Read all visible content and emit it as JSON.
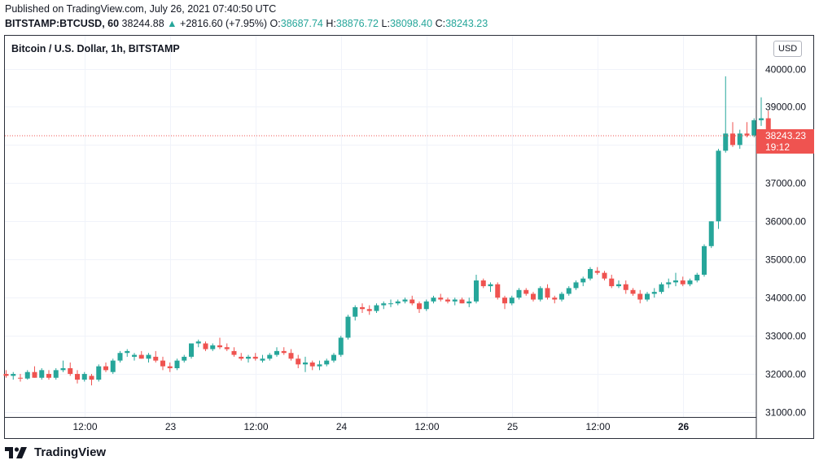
{
  "header": {
    "published": "Published on TradingView.com, July 26, 2021 07:40:50 UTC",
    "symbol": "BITSTAMP:BTCUSD, 60",
    "last": "38244.88",
    "arrow": "▲",
    "change": "+2816.60 (+7.95%)",
    "o_label": "O:",
    "o_value": "38687.74",
    "h_label": "H:",
    "h_value": "38876.72",
    "l_label": "L:",
    "l_value": "38098.40",
    "c_label": "C:",
    "c_value": "38243.23"
  },
  "legend": "Bitcoin / U.S. Dollar, 1h, BITSTAMP",
  "currency_button": "USD",
  "footer": {
    "brand": "TradingView"
  },
  "colors": {
    "up": "#26a69a",
    "down": "#ef5350",
    "grid": "#f0f3fa",
    "text": "#131722"
  },
  "chart_data": {
    "type": "candlestick",
    "title": "Bitcoin / U.S. Dollar, 1h, BITSTAMP",
    "interval": "1h",
    "ylim": [
      30800,
      40600
    ],
    "y_ticks": [
      "31000.00",
      "32000.00",
      "33000.00",
      "34000.00",
      "35000.00",
      "36000.00",
      "37000.00",
      "38000.00",
      "39000.00",
      "40000.00"
    ],
    "y_tick_values": [
      31000,
      32000,
      33000,
      34000,
      35000,
      36000,
      37000,
      38000,
      39000,
      40000
    ],
    "x_ticks": [
      {
        "label": "12:00",
        "index": 12,
        "bold": false
      },
      {
        "label": "23",
        "index": 24,
        "bold": false
      },
      {
        "label": "12:00",
        "index": 36,
        "bold": false
      },
      {
        "label": "24",
        "index": 48,
        "bold": false
      },
      {
        "label": "12:00",
        "index": 60,
        "bold": false
      },
      {
        "label": "25",
        "index": 72,
        "bold": false
      },
      {
        "label": "12:00",
        "index": 84,
        "bold": false
      },
      {
        "label": "26",
        "index": 96,
        "bold": true
      }
    ],
    "first_index": 1,
    "last_price": 38243.23,
    "last_price_label": "38243.23",
    "countdown": "19:12",
    "candles": [
      [
        32000,
        32100,
        31900,
        31950
      ],
      [
        31950,
        32050,
        31850,
        32000
      ],
      [
        31900,
        32000,
        31800,
        31880
      ],
      [
        31880,
        32100,
        31850,
        32050
      ],
      [
        32050,
        32200,
        31900,
        31900
      ],
      [
        31900,
        32150,
        31850,
        32100
      ],
      [
        32000,
        32100,
        31850,
        31900
      ],
      [
        31900,
        32150,
        31850,
        32100
      ],
      [
        32100,
        32350,
        32050,
        32150
      ],
      [
        32150,
        32300,
        31950,
        32000
      ],
      [
        32000,
        32100,
        31750,
        31850
      ],
      [
        31850,
        32050,
        31800,
        32000
      ],
      [
        31950,
        32000,
        31700,
        31850
      ],
      [
        31850,
        32250,
        31800,
        32200
      ],
      [
        32200,
        32300,
        32050,
        32100
      ],
      [
        32050,
        32400,
        32000,
        32350
      ],
      [
        32350,
        32600,
        32300,
        32550
      ],
      [
        32550,
        32650,
        32450,
        32600
      ],
      [
        32450,
        32550,
        32350,
        32500
      ],
      [
        32500,
        32600,
        32400,
        32400
      ],
      [
        32400,
        32550,
        32300,
        32500
      ],
      [
        32450,
        32600,
        32300,
        32350
      ],
      [
        32350,
        32450,
        32100,
        32200
      ],
      [
        32200,
        32300,
        32050,
        32150
      ],
      [
        32150,
        32400,
        32100,
        32350
      ],
      [
        32350,
        32500,
        32300,
        32450
      ],
      [
        32450,
        32800,
        32400,
        32800
      ],
      [
        32800,
        32900,
        32700,
        32850
      ],
      [
        32800,
        32850,
        32600,
        32650
      ],
      [
        32650,
        32800,
        32600,
        32750
      ],
      [
        32750,
        32950,
        32650,
        32700
      ],
      [
        32700,
        32800,
        32600,
        32650
      ],
      [
        32600,
        32700,
        32450,
        32500
      ],
      [
        32450,
        32550,
        32350,
        32400
      ],
      [
        32400,
        32500,
        32300,
        32450
      ],
      [
        32450,
        32550,
        32350,
        32400
      ],
      [
        32350,
        32500,
        32300,
        32400
      ],
      [
        32400,
        32550,
        32350,
        32500
      ],
      [
        32500,
        32700,
        32450,
        32600
      ],
      [
        32600,
        32700,
        32500,
        32550
      ],
      [
        32550,
        32650,
        32350,
        32400
      ],
      [
        32400,
        32500,
        32150,
        32250
      ],
      [
        32250,
        32450,
        32050,
        32300
      ],
      [
        32300,
        32350,
        32100,
        32200
      ],
      [
        32200,
        32350,
        32100,
        32250
      ],
      [
        32250,
        32400,
        32200,
        32350
      ],
      [
        32350,
        32550,
        32300,
        32500
      ],
      [
        32500,
        33000,
        32450,
        32950
      ],
      [
        32950,
        33550,
        32900,
        33500
      ],
      [
        33500,
        33800,
        33400,
        33750
      ],
      [
        33750,
        33850,
        33600,
        33700
      ],
      [
        33700,
        33800,
        33550,
        33650
      ],
      [
        33650,
        33850,
        33600,
        33800
      ],
      [
        33800,
        33900,
        33700,
        33850
      ],
      [
        33850,
        33950,
        33750,
        33850
      ],
      [
        33850,
        33950,
        33800,
        33900
      ],
      [
        33900,
        34000,
        33850,
        33950
      ],
      [
        33950,
        34050,
        33800,
        33850
      ],
      [
        33850,
        33900,
        33600,
        33700
      ],
      [
        33700,
        33950,
        33650,
        33900
      ],
      [
        33900,
        34050,
        33850,
        34000
      ],
      [
        34000,
        34100,
        33900,
        33950
      ],
      [
        33950,
        34000,
        33850,
        33900
      ],
      [
        33900,
        34000,
        33800,
        33950
      ],
      [
        33950,
        34000,
        33850,
        33850
      ],
      [
        33850,
        34000,
        33750,
        33900
      ],
      [
        33900,
        34600,
        33850,
        34450
      ],
      [
        34450,
        34500,
        34250,
        34300
      ],
      [
        34300,
        34400,
        34150,
        34350
      ],
      [
        34350,
        34400,
        33950,
        34000
      ],
      [
        34000,
        34050,
        33700,
        33850
      ],
      [
        33850,
        34050,
        33800,
        34000
      ],
      [
        34000,
        34250,
        33950,
        34200
      ],
      [
        34200,
        34250,
        34050,
        34100
      ],
      [
        34100,
        34150,
        33900,
        33950
      ],
      [
        33950,
        34300,
        33900,
        34250
      ],
      [
        34250,
        34350,
        33950,
        34000
      ],
      [
        34000,
        34050,
        33850,
        33950
      ],
      [
        33950,
        34150,
        33900,
        34100
      ],
      [
        34100,
        34300,
        34050,
        34250
      ],
      [
        34250,
        34450,
        34200,
        34400
      ],
      [
        34400,
        34550,
        34300,
        34500
      ],
      [
        34500,
        34800,
        34450,
        34750
      ],
      [
        34700,
        34800,
        34600,
        34650
      ],
      [
        34650,
        34700,
        34450,
        34500
      ],
      [
        34500,
        34600,
        34250,
        34300
      ],
      [
        34300,
        34450,
        34250,
        34350
      ],
      [
        34350,
        34450,
        34100,
        34200
      ],
      [
        34200,
        34250,
        34050,
        34100
      ],
      [
        34100,
        34200,
        33850,
        33950
      ],
      [
        33950,
        34150,
        33900,
        34100
      ],
      [
        34100,
        34250,
        34000,
        34150
      ],
      [
        34150,
        34400,
        34100,
        34350
      ],
      [
        34350,
        34500,
        34250,
        34400
      ],
      [
        34400,
        34650,
        34300,
        34450
      ],
      [
        34450,
        34550,
        34300,
        34350
      ],
      [
        34350,
        34500,
        34300,
        34450
      ],
      [
        34450,
        34650,
        34400,
        34600
      ],
      [
        34600,
        35400,
        34550,
        35350
      ],
      [
        35350,
        36000,
        35300,
        36000
      ],
      [
        36000,
        37900,
        35800,
        37850
      ],
      [
        37850,
        39800,
        37800,
        38300
      ],
      [
        38300,
        38600,
        37950,
        38000
      ],
      [
        38000,
        38400,
        37900,
        38300
      ],
      [
        38300,
        38600,
        38200,
        38250
      ],
      [
        38250,
        38700,
        38200,
        38650
      ],
      [
        38650,
        39250,
        38500,
        38700
      ],
      [
        38700,
        38900,
        38100,
        38250
      ]
    ]
  }
}
